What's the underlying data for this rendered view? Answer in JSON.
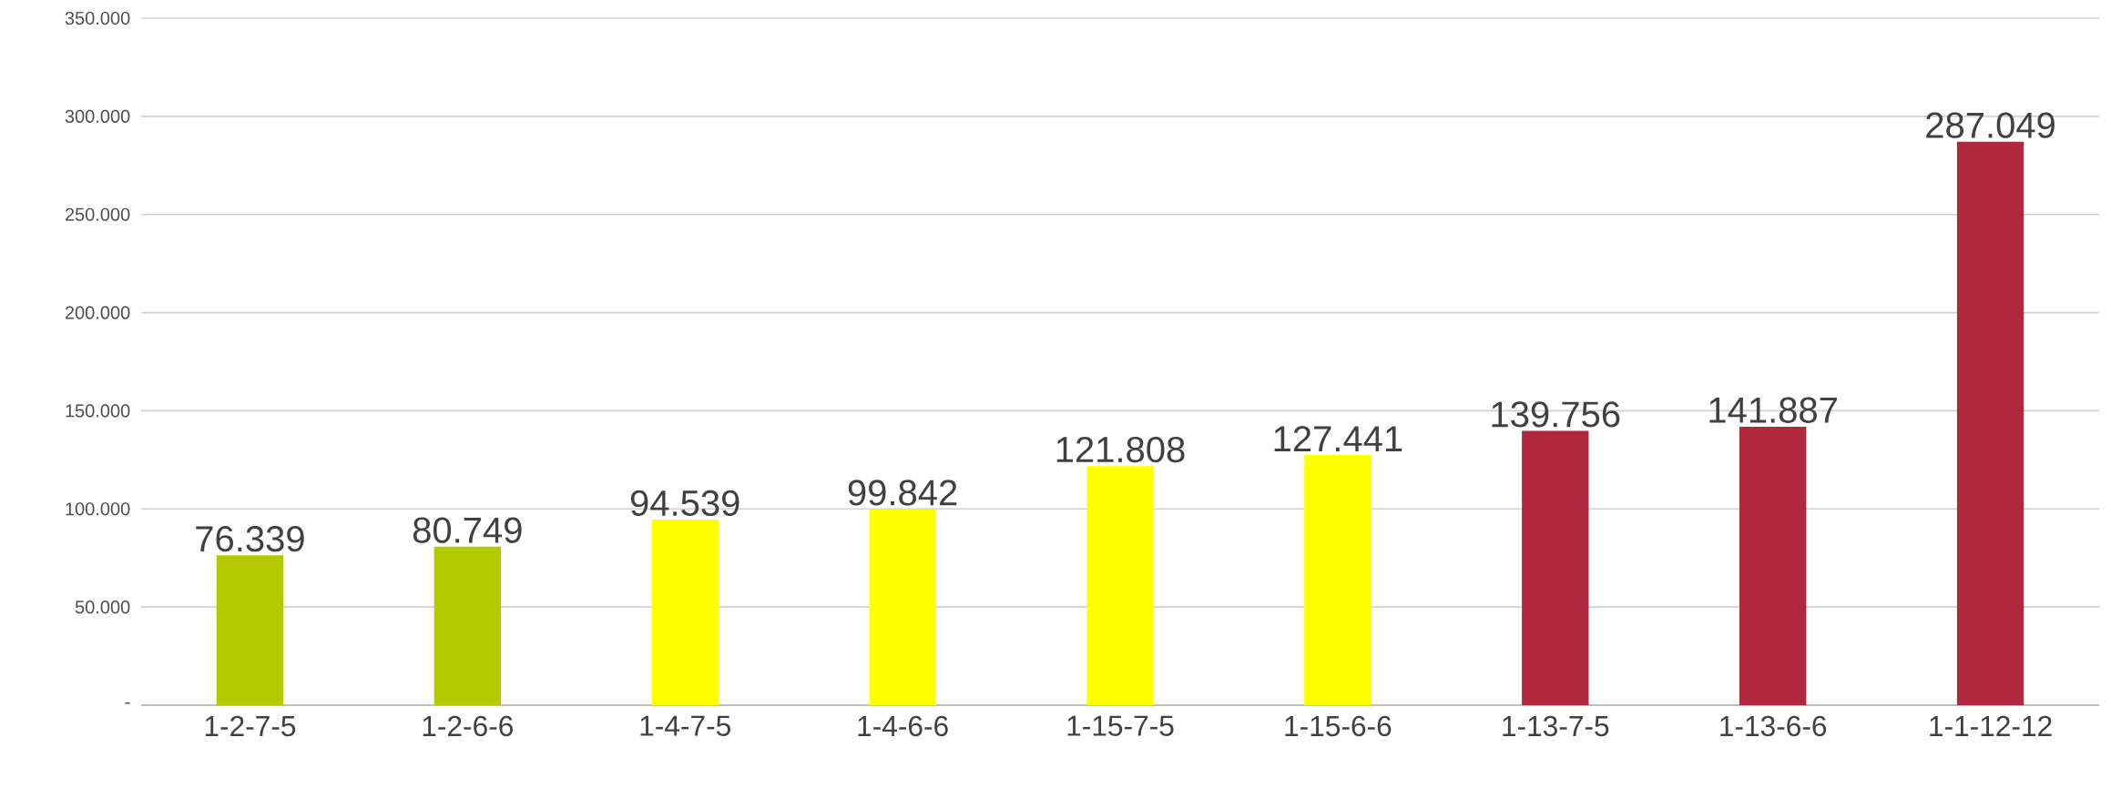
{
  "chart_data": {
    "type": "bar",
    "categories": [
      "1-2-7-5",
      "1-2-6-6",
      "1-4-7-5",
      "1-4-6-6",
      "1-15-7-5",
      "1-15-6-6",
      "1-13-7-5",
      "1-13-6-6",
      "1-1-12-12"
    ],
    "values": [
      76339,
      80749,
      94539,
      99842,
      121808,
      127441,
      139756,
      141887,
      287049
    ],
    "value_labels": [
      "76.339",
      "80.749",
      "94.539",
      "99.842",
      "121.808",
      "127.441",
      "139.756",
      "141.887",
      "287.049"
    ],
    "colors": [
      "#b5c900",
      "#b5c900",
      "#ffff00",
      "#ffff00",
      "#ffff00",
      "#ffff00",
      "#b0283c",
      "#b0283c",
      "#b0283c"
    ],
    "ylim": [
      0,
      350000
    ],
    "yticks": [
      {
        "value": 0,
        "label": "-"
      },
      {
        "value": 50000,
        "label": "50.000"
      },
      {
        "value": 100000,
        "label": "100.000"
      },
      {
        "value": 150000,
        "label": "150.000"
      },
      {
        "value": 200000,
        "label": "200.000"
      },
      {
        "value": 250000,
        "label": "250.000"
      },
      {
        "value": 300000,
        "label": "300.000"
      },
      {
        "value": 350000,
        "label": "350.000"
      }
    ],
    "grid": "y"
  }
}
